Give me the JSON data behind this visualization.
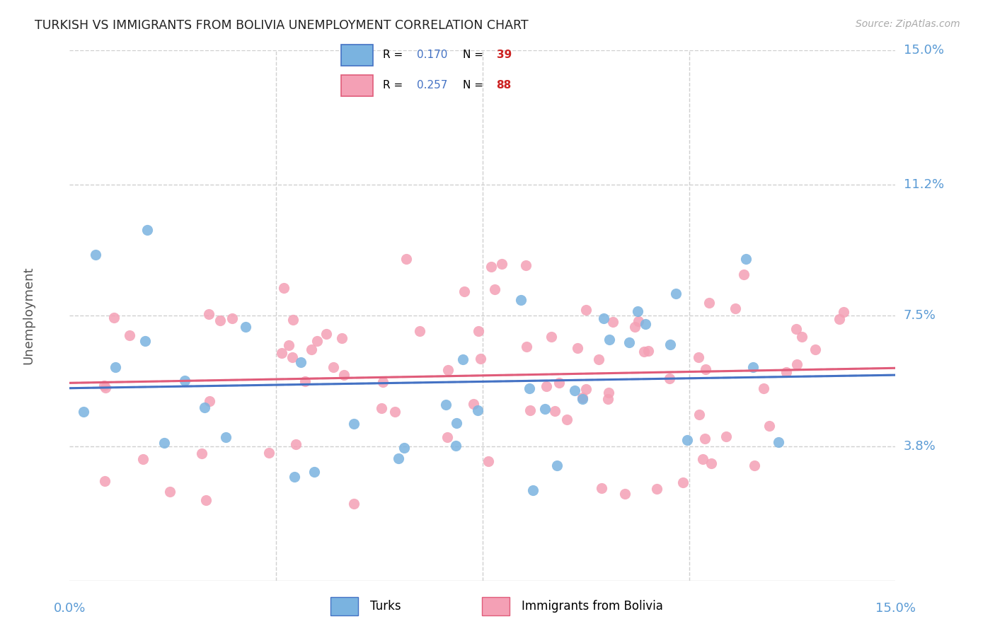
{
  "title": "TURKISH VS IMMIGRANTS FROM BOLIVIA UNEMPLOYMENT CORRELATION CHART",
  "source": "Source: ZipAtlas.com",
  "ylabel": "Unemployment",
  "xlim": [
    0.0,
    0.15
  ],
  "ylim": [
    0.0,
    0.15
  ],
  "turks_R": 0.17,
  "turks_N": 39,
  "bolivia_R": 0.257,
  "bolivia_N": 88,
  "turk_color": "#7ab3e0",
  "bolivia_color": "#f4a0b5",
  "turk_line_color": "#4472c4",
  "bolivia_line_color": "#e05c7a",
  "background_color": "#ffffff",
  "grid_color": "#d0d0d0",
  "title_color": "#222222",
  "axis_label_color": "#5b9bd5",
  "ytick_vals": [
    0.038,
    0.075,
    0.112,
    0.15
  ],
  "ytick_labels": [
    "3.8%",
    "7.5%",
    "11.2%",
    "15.0%"
  ]
}
